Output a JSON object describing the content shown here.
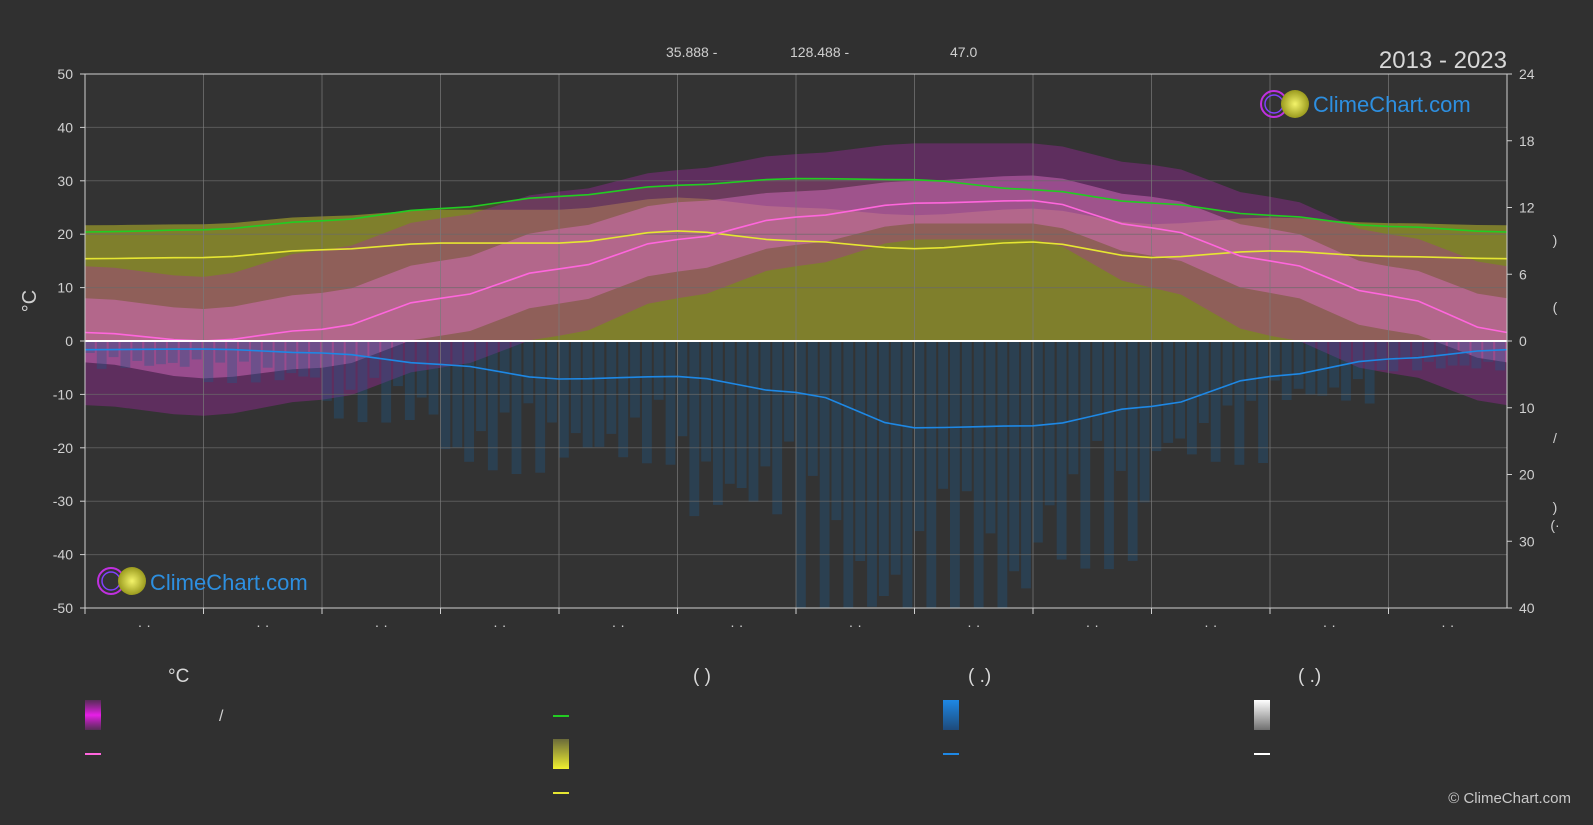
{
  "header": {
    "latitude": "35.888 -",
    "longitude": "128.488 -",
    "elevation": "47.0",
    "period": "2013 - 2023"
  },
  "logo_text": "ClimeChart.com",
  "copyright": "© ClimeChart.com",
  "chart_data": {
    "type": "area",
    "left_axis": {
      "label": "°C",
      "range": [
        -50,
        50
      ],
      "ticks": [
        50,
        40,
        30,
        20,
        10,
        0,
        -10,
        -20,
        -30,
        -40,
        -50
      ]
    },
    "right_axis_top": {
      "range": [
        0,
        24
      ],
      "ticks": [
        24,
        18,
        12,
        6,
        0
      ]
    },
    "right_axis_bottom": {
      "range": [
        0,
        40
      ],
      "ticks": [
        10,
        20,
        30,
        40
      ]
    },
    "right_axis_glyphs": [
      ")",
      "(",
      "/",
      ")",
      "(·"
    ],
    "month_ticks": [
      "· ·",
      "· ·",
      "· ·",
      "· ·",
      "· ·",
      "· ·",
      "· ·",
      "· ·",
      "· ·",
      "· ·",
      "· ·",
      "· ·"
    ],
    "month_positions": [
      0.5,
      1.5,
      2.5,
      3.5,
      4.5,
      5.5,
      6.5,
      7.5,
      8.5,
      9.5,
      10.5,
      11.5
    ],
    "series": [
      {
        "key": "daylight",
        "unit": "hours",
        "color": "#22cc22",
        "values": [
          10.0,
          10.8,
          11.9,
          13.0,
          14.0,
          14.6,
          14.5,
          13.6,
          12.4,
          11.3,
          10.3,
          9.8
        ]
      },
      {
        "key": "sunshine",
        "unit": "hours",
        "color": "#e6e632",
        "values": [
          7.5,
          8.2,
          8.8,
          8.8,
          9.9,
          9.0,
          8.3,
          8.9,
          7.5,
          8.1,
          7.6,
          7.4
        ]
      },
      {
        "key": "avg_temp",
        "unit": "°C",
        "color": "#ff66dd",
        "values": [
          0.0,
          2.2,
          8.0,
          13.5,
          19.0,
          23.2,
          25.8,
          26.3,
          21.2,
          15.0,
          8.5,
          1.6
        ]
      },
      {
        "key": "precip",
        "unit": "mm",
        "color": "#1e88e5",
        "values": [
          1.2,
          1.8,
          3.5,
          5.7,
          5.3,
          7.7,
          13.0,
          12.7,
          9.8,
          5.3,
          2.7,
          1.3
        ]
      }
    ],
    "bands": {
      "temp_max": [
        6,
        9,
        15,
        21,
        26,
        28,
        30,
        31,
        27,
        21,
        14,
        8
      ],
      "temp_min": [
        -7,
        -5,
        1,
        7,
        13,
        18,
        22,
        22,
        16,
        9,
        2,
        -4
      ],
      "temp_extreme_max": [
        12,
        17,
        23,
        28,
        32,
        35,
        37,
        37,
        33,
        27,
        20,
        14
      ],
      "temp_extreme_min": [
        -14,
        -11,
        -5,
        1,
        8,
        14,
        19,
        19,
        10,
        1,
        -6,
        -12
      ]
    }
  },
  "legend": {
    "columns": [
      {
        "header": "°C",
        "items": [
          "/",
          "",
          ""
        ]
      },
      {
        "header": "(  )",
        "items": [
          "",
          "",
          ""
        ]
      },
      {
        "header": "(  .)",
        "items": [
          "",
          ""
        ]
      },
      {
        "header": "(  .)",
        "items": [
          "",
          ""
        ]
      }
    ],
    "colors": {
      "temp_band": "#e81ee8",
      "temp_line": "#ff66dd",
      "daylight": "#22cc22",
      "sun_band": "#e6e632",
      "sun_line": "#e6e632",
      "precip_band": "#1e88e5",
      "precip_line": "#1e88e5",
      "snow_band": "#ffffff",
      "snow_line": "#ffffff"
    }
  }
}
